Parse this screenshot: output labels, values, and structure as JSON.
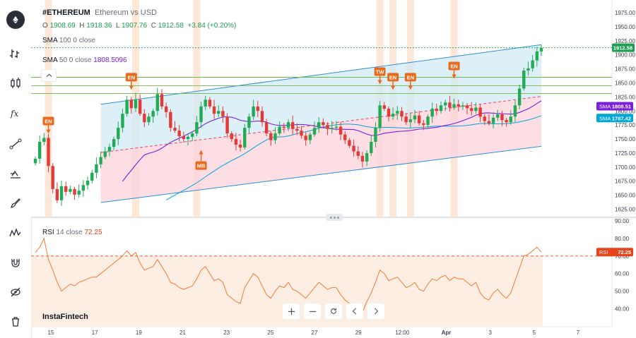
{
  "header": {
    "symbol": "#ETHEREUM",
    "description": "Ethereum vs USD",
    "o_label": "O",
    "o_value": "1908.69",
    "h_label": "H",
    "h_value": "1918.36",
    "l_label": "L",
    "l_value": "1907.76",
    "c_label": "C",
    "c_value": "1912.58",
    "change": "+3.84 (+0.20%)"
  },
  "indicators": {
    "sma100": {
      "name": "SMA",
      "params": "100 0 close",
      "value": "",
      "color": "#00a6d6"
    },
    "sma50": {
      "name": "SMA",
      "params": "50 0 close",
      "value": "1808.5096",
      "color": "#7b1fd9"
    },
    "rsi": {
      "name": "RSI",
      "params": "14 close",
      "value": "72.25",
      "color": "#f47b30"
    }
  },
  "brand": "InstaFintech",
  "price_axis": {
    "labels": [
      "1975.00",
      "1950.00",
      "1925.00",
      "1900.00",
      "1875.00",
      "1850.00",
      "1825.00",
      "1800.00",
      "1775.00",
      "1750.00",
      "1725.00",
      "1700.00",
      "1675.00",
      "1650.00",
      "1625.00"
    ]
  },
  "rsi_axis": {
    "labels": [
      "90.00",
      "80.00",
      "70.00",
      "60.00",
      "50.00",
      "40.00"
    ]
  },
  "time_axis": {
    "labels": [
      "15",
      "17",
      "19",
      "21",
      "23",
      "25",
      "27",
      "29",
      "12:00",
      "Apr",
      "3",
      "5",
      "7"
    ]
  },
  "price_tags": {
    "last": {
      "label": "",
      "value": "1912.58",
      "color": "#1e9e52"
    },
    "sma50": {
      "label": "SMA",
      "value": "1808.51",
      "color": "#7b1fd9"
    },
    "sma100": {
      "label": "SMA",
      "value": "1787.42",
      "color": "#00a6d6"
    },
    "rsi": {
      "label": "RSI",
      "value": "72.25",
      "color": "#e8431b"
    }
  },
  "annotations": [
    {
      "text": "EN",
      "index": 3,
      "price": 1757,
      "dir": "down"
    },
    {
      "text": "EN",
      "index": 22,
      "price": 1835,
      "dir": "down"
    },
    {
      "text": "MB",
      "index": 38,
      "price": 1733,
      "dir": "up"
    },
    {
      "text": "TW",
      "index": 79,
      "price": 1845,
      "dir": "down"
    },
    {
      "text": "EN",
      "index": 82,
      "price": 1835,
      "dir": "down"
    },
    {
      "text": "EN",
      "index": 86,
      "price": 1835,
      "dir": "down"
    },
    {
      "text": "EN",
      "index": 96,
      "price": 1855,
      "dir": "down"
    }
  ],
  "highlight_indices": [
    3,
    23,
    37,
    79,
    82,
    86,
    96
  ],
  "horizontal_levels": [
    1860,
    1845,
    1831
  ],
  "chart_data": {
    "type": "candlestick",
    "price_range": [
      1610,
      1990
    ],
    "rsi_range": [
      30,
      92
    ],
    "rsi_level": 70,
    "last_price": 1912.58,
    "close": [
      1715,
      1745,
      1752,
      1702,
      1661,
      1641,
      1666,
      1656,
      1661,
      1651,
      1658,
      1668,
      1676,
      1690,
      1705,
      1718,
      1728,
      1736,
      1750,
      1770,
      1795,
      1820,
      1805,
      1820,
      1795,
      1780,
      1790,
      1800,
      1830,
      1808,
      1798,
      1770,
      1765,
      1755,
      1750,
      1754,
      1760,
      1780,
      1808,
      1820,
      1808,
      1795,
      1800,
      1790,
      1760,
      1750,
      1740,
      1735,
      1770,
      1790,
      1808,
      1800,
      1780,
      1760,
      1748,
      1760,
      1772,
      1770,
      1780,
      1768,
      1765,
      1756,
      1748,
      1758,
      1770,
      1780,
      1775,
      1768,
      1770,
      1772,
      1758,
      1748,
      1738,
      1728,
      1720,
      1710,
      1725,
      1745,
      1770,
      1810,
      1804,
      1790,
      1795,
      1800,
      1790,
      1780,
      1785,
      1792,
      1778,
      1775,
      1790,
      1804,
      1800,
      1810,
      1815,
      1806,
      1812,
      1808,
      1810,
      1805,
      1800,
      1806,
      1790,
      1782,
      1778,
      1788,
      1794,
      1784,
      1780,
      1790,
      1810,
      1840,
      1872,
      1876,
      1890,
      1906,
      1912
    ],
    "rsi": [
      72,
      75,
      80,
      68,
      62,
      55,
      50,
      52,
      54,
      53,
      55,
      56,
      57,
      58,
      58,
      60,
      62,
      64,
      66,
      68,
      70,
      73,
      70,
      72,
      66,
      62,
      63,
      64,
      68,
      64,
      60,
      55,
      54,
      52,
      51,
      52,
      53,
      57,
      62,
      64,
      60,
      56,
      57,
      55,
      48,
      46,
      44,
      43,
      52,
      56,
      60,
      58,
      53,
      48,
      46,
      50,
      53,
      52,
      55,
      51,
      50,
      48,
      46,
      49,
      52,
      55,
      53,
      51,
      52,
      52,
      48,
      45,
      43,
      41,
      40,
      38,
      44,
      49,
      55,
      62,
      60,
      56,
      57,
      58,
      55,
      52,
      53,
      55,
      51,
      50,
      54,
      57,
      56,
      58,
      59,
      56,
      58,
      57,
      57,
      55,
      53,
      55,
      49,
      46,
      45,
      49,
      51,
      48,
      46,
      49,
      56,
      63,
      70,
      71,
      73,
      75,
      72.25
    ]
  }
}
